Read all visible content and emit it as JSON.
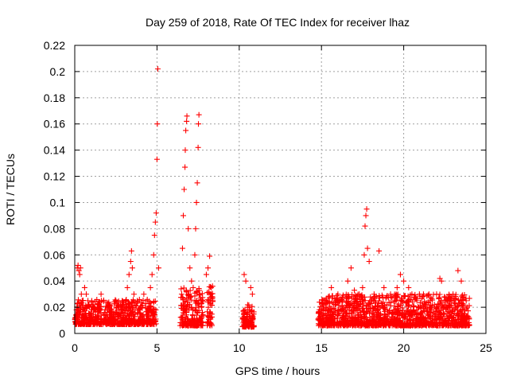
{
  "chart_data": {
    "type": "scatter",
    "title": "Day 259 of 2018, Rate Of TEC Index for receiver lhaz",
    "xlabel": "GPS time / hours",
    "ylabel": "ROTI / TECUs",
    "xlim": [
      0,
      25
    ],
    "ylim": [
      0,
      0.22
    ],
    "xticks": [
      0,
      5,
      10,
      15,
      20,
      25
    ],
    "yticks": [
      0,
      0.02,
      0.04,
      0.06,
      0.08,
      0.1,
      0.12,
      0.14,
      0.16,
      0.18,
      0.2,
      0.22
    ],
    "grid": true,
    "marker": "plus",
    "color": "#ff0000",
    "points": [
      [
        0.05,
        0.012
      ],
      [
        0.1,
        0.018
      ],
      [
        0.15,
        0.05
      ],
      [
        0.2,
        0.052
      ],
      [
        0.25,
        0.048
      ],
      [
        0.3,
        0.045
      ],
      [
        0.35,
        0.05
      ],
      [
        0.4,
        0.03
      ],
      [
        0.45,
        0.025
      ],
      [
        0.5,
        0.02
      ],
      [
        0.6,
        0.035
      ],
      [
        0.7,
        0.03
      ],
      [
        0.8,
        0.025
      ],
      [
        0.9,
        0.015
      ],
      [
        1.0,
        0.02
      ],
      [
        1.2,
        0.018
      ],
      [
        1.4,
        0.022
      ],
      [
        1.6,
        0.03
      ],
      [
        1.8,
        0.016
      ],
      [
        2.0,
        0.02
      ],
      [
        2.2,
        0.018
      ],
      [
        2.5,
        0.025
      ],
      [
        2.8,
        0.015
      ],
      [
        3.0,
        0.02
      ],
      [
        3.2,
        0.035
      ],
      [
        3.3,
        0.045
      ],
      [
        3.4,
        0.055
      ],
      [
        3.45,
        0.063
      ],
      [
        3.5,
        0.05
      ],
      [
        3.6,
        0.03
      ],
      [
        3.8,
        0.025
      ],
      [
        4.0,
        0.02
      ],
      [
        4.2,
        0.03
      ],
      [
        4.4,
        0.025
      ],
      [
        4.5,
        0.018
      ],
      [
        4.6,
        0.035
      ],
      [
        4.7,
        0.045
      ],
      [
        4.8,
        0.06
      ],
      [
        4.85,
        0.075
      ],
      [
        4.9,
        0.085
      ],
      [
        4.95,
        0.092
      ],
      [
        5.0,
        0.133
      ],
      [
        5.02,
        0.16
      ],
      [
        5.05,
        0.202
      ],
      [
        5.1,
        0.05
      ],
      [
        6.5,
        0.03
      ],
      [
        6.55,
        0.065
      ],
      [
        6.6,
        0.09
      ],
      [
        6.65,
        0.11
      ],
      [
        6.7,
        0.127
      ],
      [
        6.72,
        0.14
      ],
      [
        6.75,
        0.155
      ],
      [
        6.8,
        0.162
      ],
      [
        6.82,
        0.166
      ],
      [
        6.9,
        0.08
      ],
      [
        7.0,
        0.05
      ],
      [
        7.1,
        0.04
      ],
      [
        7.2,
        0.035
      ],
      [
        7.3,
        0.06
      ],
      [
        7.35,
        0.08
      ],
      [
        7.4,
        0.1
      ],
      [
        7.45,
        0.115
      ],
      [
        7.5,
        0.142
      ],
      [
        7.52,
        0.16
      ],
      [
        7.55,
        0.167
      ],
      [
        7.6,
        0.03
      ],
      [
        7.7,
        0.02
      ],
      [
        8.0,
        0.045
      ],
      [
        8.1,
        0.05
      ],
      [
        8.2,
        0.059
      ],
      [
        8.3,
        0.035
      ],
      [
        10.3,
        0.045
      ],
      [
        10.4,
        0.04
      ],
      [
        10.5,
        0.02
      ],
      [
        10.6,
        0.015
      ],
      [
        10.7,
        0.035
      ],
      [
        10.8,
        0.03
      ],
      [
        15.0,
        0.018
      ],
      [
        15.3,
        0.025
      ],
      [
        15.6,
        0.035
      ],
      [
        16.0,
        0.03
      ],
      [
        16.3,
        0.025
      ],
      [
        16.6,
        0.04
      ],
      [
        16.8,
        0.05
      ],
      [
        17.0,
        0.033
      ],
      [
        17.3,
        0.03
      ],
      [
        17.5,
        0.035
      ],
      [
        17.6,
        0.06
      ],
      [
        17.65,
        0.082
      ],
      [
        17.7,
        0.09
      ],
      [
        17.75,
        0.095
      ],
      [
        17.8,
        0.065
      ],
      [
        17.9,
        0.055
      ],
      [
        18.2,
        0.03
      ],
      [
        18.5,
        0.063
      ],
      [
        18.8,
        0.035
      ],
      [
        19.2,
        0.03
      ],
      [
        19.6,
        0.035
      ],
      [
        19.8,
        0.045
      ],
      [
        20.0,
        0.04
      ],
      [
        20.3,
        0.035
      ],
      [
        20.5,
        0.03
      ],
      [
        20.8,
        0.025
      ],
      [
        21.2,
        0.03
      ],
      [
        21.6,
        0.025
      ],
      [
        22.0,
        0.03
      ],
      [
        22.2,
        0.042
      ],
      [
        22.3,
        0.04
      ],
      [
        22.5,
        0.025
      ],
      [
        23.0,
        0.03
      ],
      [
        23.3,
        0.048
      ],
      [
        23.5,
        0.04
      ],
      [
        23.8,
        0.025
      ]
    ],
    "clusters": [
      {
        "x": [
          0.0,
          4.95
        ],
        "base": 0.007,
        "top": 0.026
      },
      {
        "x": [
          6.4,
          7.8
        ],
        "base": 0.006,
        "top": 0.035
      },
      {
        "x": [
          8.05,
          8.4
        ],
        "base": 0.006,
        "top": 0.04
      },
      {
        "x": [
          10.2,
          10.9
        ],
        "base": 0.005,
        "top": 0.022
      },
      {
        "x": [
          14.8,
          24.0
        ],
        "base": 0.006,
        "top": 0.03
      }
    ]
  }
}
